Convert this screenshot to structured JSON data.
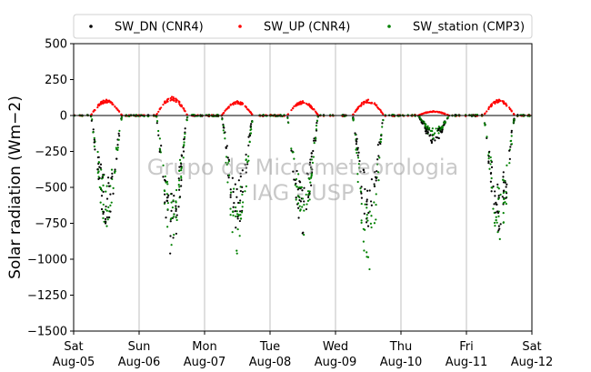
{
  "chart_data": {
    "type": "scatter",
    "title": "",
    "xlabel": "",
    "ylabel": "Solar radiation (Wm−2)",
    "ylim": [
      -1500,
      500
    ],
    "yticks": [
      500,
      250,
      0,
      -250,
      -500,
      -750,
      -1000,
      -1250,
      -1500
    ],
    "xlim": [
      "2017-08-05",
      "2017-08-12"
    ],
    "xticks": [
      {
        "day": "Sat",
        "date": "Aug-05"
      },
      {
        "day": "Sun",
        "date": "Aug-06"
      },
      {
        "day": "Mon",
        "date": "Aug-07"
      },
      {
        "day": "Tue",
        "date": "Aug-08"
      },
      {
        "day": "Wed",
        "date": "Aug-09"
      },
      {
        "day": "Thu",
        "date": "Aug-10"
      },
      {
        "day": "Fri",
        "date": "Aug-11"
      },
      {
        "day": "Sat",
        "date": "Aug-12"
      }
    ],
    "grid": "vertical",
    "legend_placement": "top",
    "watermark": [
      "Grupo de Micrometeorologia",
      "IAG - USP"
    ],
    "series": [
      {
        "name": "SW_DN (CNR4)",
        "color": "#000000"
      },
      {
        "name": "SW_UP (CNR4)",
        "color": "#ff0000"
      },
      {
        "name": "SW_station (CMP3)",
        "color": "#008000"
      }
    ],
    "daily_peaks": [
      {
        "date": "Aug-05",
        "sw_dn_min": -750,
        "sw_up_max": 110,
        "sw_station_min": -770
      },
      {
        "date": "Aug-06",
        "sw_dn_min": -960,
        "sw_up_max": 130,
        "sw_station_min": -900
      },
      {
        "date": "Aug-07",
        "sw_dn_min": -780,
        "sw_up_max": 100,
        "sw_station_min": -960
      },
      {
        "date": "Aug-08",
        "sw_dn_min": -820,
        "sw_up_max": 100,
        "sw_station_min": -830
      },
      {
        "date": "Aug-09",
        "sw_dn_min": -770,
        "sw_up_max": 110,
        "sw_station_min": -1070
      },
      {
        "date": "Aug-10",
        "sw_dn_min": -190,
        "sw_up_max": 30,
        "sw_station_min": -160
      },
      {
        "date": "Aug-11",
        "sw_dn_min": -800,
        "sw_up_max": 110,
        "sw_station_min": -860
      }
    ]
  }
}
